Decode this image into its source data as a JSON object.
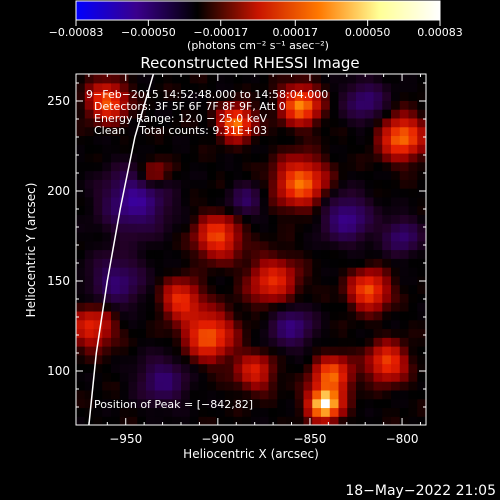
{
  "chart_data": {
    "type": "heatmap",
    "title": "Reconstructed RHESSI Image",
    "xlabel": "Heliocentric X (arcsec)",
    "ylabel": "Heliocentric Y (arcsec)",
    "xlim": [
      -977,
      -787
    ],
    "ylim": [
      70,
      265
    ],
    "xticks": [
      -950,
      -900,
      -850,
      -800
    ],
    "xtick_labels": [
      "−950",
      "−900",
      "−850",
      "−800"
    ],
    "yticks": [
      100,
      150,
      200,
      250
    ],
    "ytick_labels": [
      "100",
      "150",
      "200",
      "250"
    ],
    "colorbar": {
      "range": [
        -0.00083,
        0.00083
      ],
      "ticks": [
        -0.00083,
        -0.0005,
        -0.00017,
        0.00017,
        0.0005,
        0.00083
      ],
      "tick_labels": [
        "−0.00083",
        "−0.00050",
        "−0.00017",
        "0.00017",
        "0.00050",
        "0.00083"
      ],
      "unit_label": "(photons cm⁻² s⁻¹ asec⁻²)",
      "colors": [
        "#0000ff",
        "#3a008c",
        "#000000",
        "#c81400",
        "#ff7800",
        "#ffff96",
        "#ffffff"
      ]
    },
    "annotations": [
      "9−Feb−2015 14:52:48.000 to 14:58:04.000",
      "Detectors: 3F 5F 6F 7F 8F 9F, Att 0",
      "Energy Range: 12.0 − 25.0 keV",
      "Clean    Total counts: 9.31E+03"
    ],
    "peak_label": "Position of Peak = [−842,82]",
    "peak": [
      -842,
      82
    ],
    "limb": [
      [
        -935,
        265
      ],
      [
        -945,
        230
      ],
      [
        -953,
        190
      ],
      [
        -960,
        150
      ],
      [
        -966,
        110
      ],
      [
        -970,
        70
      ]
    ],
    "limb_color": "#ffffff",
    "grid_size": [
      40,
      40
    ],
    "hot_spots": [
      {
        "x": -842,
        "y": 82,
        "amp": 1.0,
        "sigma": 6
      },
      {
        "x": -838,
        "y": 98,
        "amp": 0.6,
        "sigma": 7
      },
      {
        "x": -855,
        "y": 205,
        "amp": 0.65,
        "sigma": 9
      },
      {
        "x": -890,
        "y": 238,
        "amp": 0.7,
        "sigma": 6
      },
      {
        "x": -855,
        "y": 248,
        "amp": 0.7,
        "sigma": 7
      },
      {
        "x": -900,
        "y": 175,
        "amp": 0.55,
        "sigma": 8
      },
      {
        "x": -905,
        "y": 120,
        "amp": 0.6,
        "sigma": 9
      },
      {
        "x": -920,
        "y": 140,
        "amp": 0.5,
        "sigma": 7
      },
      {
        "x": -818,
        "y": 145,
        "amp": 0.6,
        "sigma": 7
      },
      {
        "x": -800,
        "y": 230,
        "amp": 0.65,
        "sigma": 8
      },
      {
        "x": -808,
        "y": 105,
        "amp": 0.55,
        "sigma": 7
      },
      {
        "x": -960,
        "y": 250,
        "amp": 0.6,
        "sigma": 7
      },
      {
        "x": -968,
        "y": 125,
        "amp": 0.45,
        "sigma": 8
      },
      {
        "x": -870,
        "y": 150,
        "amp": 0.45,
        "sigma": 9
      },
      {
        "x": -935,
        "y": 210,
        "amp": 0.35,
        "sigma": 6
      },
      {
        "x": -880,
        "y": 100,
        "amp": 0.4,
        "sigma": 7
      }
    ],
    "cold_spots": [
      {
        "x": -945,
        "y": 195,
        "amp": 0.55,
        "sigma": 12
      },
      {
        "x": -955,
        "y": 150,
        "amp": 0.4,
        "sigma": 10
      },
      {
        "x": -830,
        "y": 185,
        "amp": 0.5,
        "sigma": 9
      },
      {
        "x": -820,
        "y": 250,
        "amp": 0.4,
        "sigma": 8
      },
      {
        "x": -860,
        "y": 125,
        "amp": 0.45,
        "sigma": 8
      },
      {
        "x": -930,
        "y": 95,
        "amp": 0.4,
        "sigma": 9
      },
      {
        "x": -800,
        "y": 175,
        "amp": 0.4,
        "sigma": 7
      },
      {
        "x": -885,
        "y": 195,
        "amp": 0.35,
        "sigma": 6
      }
    ]
  },
  "footer": {
    "timestamp": "18−May−2022 21:05"
  }
}
